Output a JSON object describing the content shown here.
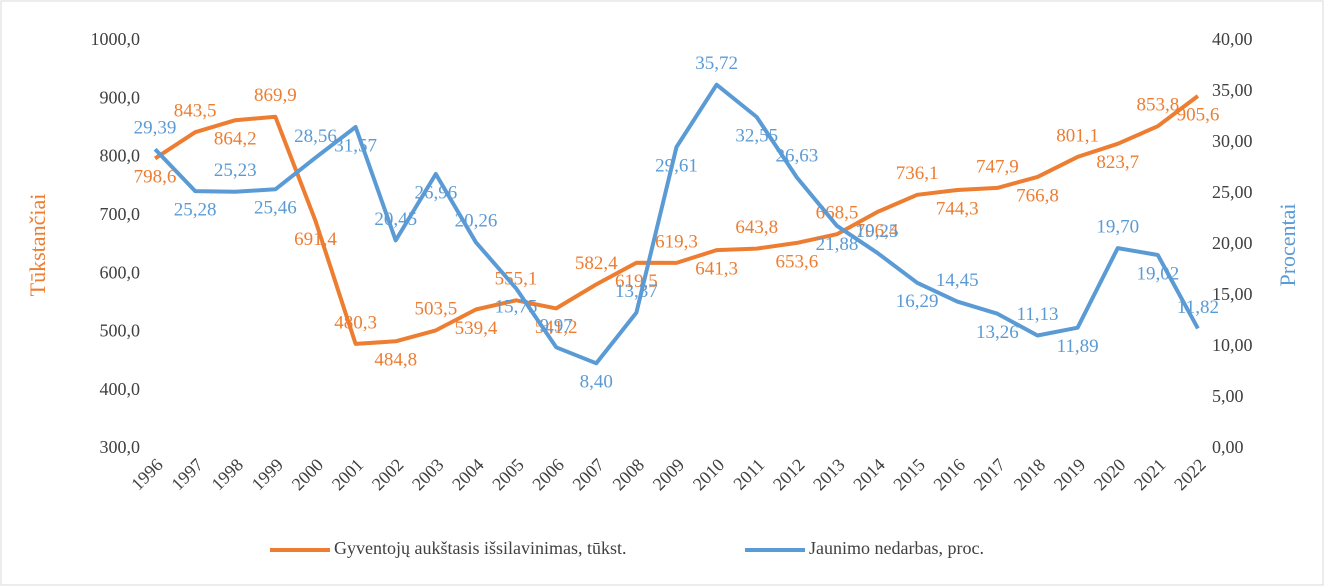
{
  "chart_data": {
    "type": "line",
    "categories": [
      "1996",
      "1997",
      "1998",
      "1999",
      "2000",
      "2001",
      "2002",
      "2003",
      "2004",
      "2005",
      "2006",
      "2007",
      "2008",
      "2009",
      "2010",
      "2011",
      "2012",
      "2013",
      "2014",
      "2015",
      "2016",
      "2017",
      "2018",
      "2019",
      "2020",
      "2021",
      "2022"
    ],
    "y_label": "Tūkstančiai",
    "y2_label": "Procentai",
    "ylim": [
      300,
      1000
    ],
    "yticks": [
      {
        "value": 300,
        "label": "300,0"
      },
      {
        "value": 400,
        "label": "400,0"
      },
      {
        "value": 500,
        "label": "500,0"
      },
      {
        "value": 600,
        "label": "600,0"
      },
      {
        "value": 700,
        "label": "700,0"
      },
      {
        "value": 800,
        "label": "800,0"
      },
      {
        "value": 900,
        "label": "900,0"
      },
      {
        "value": 1000,
        "label": "1000,0"
      }
    ],
    "y2lim": [
      0,
      40
    ],
    "y2ticks": [
      {
        "value": 0,
        "label": "0,00"
      },
      {
        "value": 5,
        "label": "5,00"
      },
      {
        "value": 10,
        "label": "10,00"
      },
      {
        "value": 15,
        "label": "15,00"
      },
      {
        "value": 20,
        "label": "20,00"
      },
      {
        "value": 25,
        "label": "25,00"
      },
      {
        "value": 30,
        "label": "30,00"
      },
      {
        "value": 35,
        "label": "35,00"
      },
      {
        "value": 40,
        "label": "40,00"
      }
    ],
    "grid": false,
    "legend": "bottom",
    "series": [
      {
        "name": "Gyventojų aukštasis išsilavinimas, tūkst.",
        "color": "#ed7d31",
        "values": [
          798.6,
          843.5,
          864.2,
          869.9,
          691.4,
          480.3,
          484.8,
          503.5,
          539.4,
          555.1,
          541.2,
          582.4,
          619.5,
          619.3,
          641.3,
          643.8,
          653.6,
          668.5,
          706.4,
          736.1,
          744.3,
          747.9,
          766.8,
          801.1,
          823.7,
          853.8,
          905.6
        ],
        "value_labels": [
          "798,6",
          "843,5",
          "864,2",
          "869,9",
          "691,4",
          "480,3",
          "484,8",
          "503,5",
          "539,4",
          "555,1",
          "541,2",
          "582,4",
          "619,5",
          "619,3",
          "641,3",
          "643,8",
          "653,6",
          "668,5",
          "706,4",
          "736,1",
          "744,3",
          "747,9",
          "766,8",
          "801,1",
          "823,7",
          "853,8",
          "905,6"
        ]
      },
      {
        "name": "Jaunimo nedarbas, proc.",
        "color": "#5b9bd5",
        "axis": "y2",
        "values": [
          29.39,
          25.28,
          25.23,
          25.46,
          28.56,
          31.57,
          20.45,
          26.96,
          20.26,
          15.75,
          9.97,
          8.4,
          13.37,
          29.61,
          35.72,
          32.55,
          26.63,
          21.88,
          19.25,
          16.29,
          14.45,
          13.26,
          11.13,
          11.89,
          19.7,
          19.02,
          11.82
        ],
        "value_labels": [
          "29,39",
          "25,28",
          "25,23",
          "25,46",
          "28,56",
          "31,57",
          "20,45",
          "26,96",
          "20,26",
          "15,75",
          "9,97",
          "8,40",
          "13,37",
          "29,61",
          "35,72",
          "32,55",
          "26,63",
          "21,88",
          "19,25",
          "16,29",
          "14,45",
          "13,26",
          "11,13",
          "11,89",
          "19,70",
          "19,02",
          "11,82"
        ]
      }
    ]
  }
}
